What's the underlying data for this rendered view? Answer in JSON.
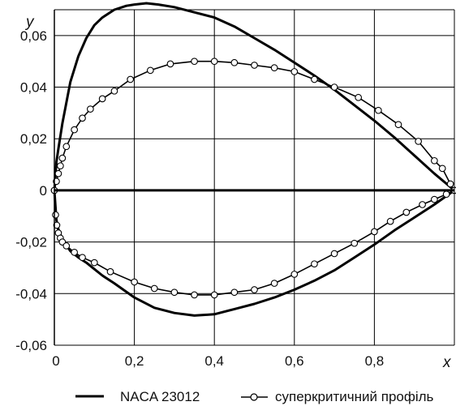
{
  "chart_data": {
    "type": "line",
    "title": "",
    "xlabel": "x",
    "ylabel": "y",
    "xlim": [
      0,
      1.0
    ],
    "ylim": [
      -0.06,
      0.07
    ],
    "x_ticks": [
      0,
      0.2,
      0.4,
      0.6,
      0.8
    ],
    "x_tick_labels": [
      "0",
      "0,2",
      "0,4",
      "0,6",
      "0,8"
    ],
    "y_ticks": [
      -0.06,
      -0.04,
      -0.02,
      0,
      0.02,
      0.04,
      0.06
    ],
    "y_tick_labels": [
      "-0,06",
      "-0,04",
      "-0,02",
      "0",
      "0,02",
      "0,04",
      "0,06"
    ],
    "grid": true,
    "legend_position": "bottom",
    "colors": {
      "line": "#000000",
      "marker_fill": "#ffffff"
    },
    "series": [
      {
        "name": "NACA 23012",
        "style": "line",
        "upper": {
          "x": [
            0,
            0.005,
            0.01,
            0.02,
            0.04,
            0.06,
            0.08,
            0.1,
            0.12,
            0.15,
            0.18,
            0.2,
            0.23,
            0.26,
            0.3,
            0.35,
            0.4,
            0.45,
            0.5,
            0.55,
            0.6,
            0.65,
            0.7,
            0.75,
            0.8,
            0.85,
            0.9,
            0.95,
            1.0
          ],
          "y": [
            0,
            0.011,
            0.016,
            0.026,
            0.042,
            0.052,
            0.059,
            0.064,
            0.067,
            0.07,
            0.0715,
            0.072,
            0.0725,
            0.072,
            0.071,
            0.069,
            0.067,
            0.0635,
            0.059,
            0.0545,
            0.0495,
            0.0445,
            0.039,
            0.033,
            0.027,
            0.0205,
            0.0135,
            0.0065,
            0
          ]
        },
        "lower": {
          "x": [
            0,
            0.005,
            0.01,
            0.02,
            0.04,
            0.06,
            0.08,
            0.1,
            0.12,
            0.15,
            0.2,
            0.25,
            0.3,
            0.35,
            0.4,
            0.45,
            0.5,
            0.55,
            0.6,
            0.65,
            0.7,
            0.75,
            0.8,
            0.85,
            0.9,
            0.95,
            1.0
          ],
          "y": [
            0,
            -0.0115,
            -0.015,
            -0.019,
            -0.0235,
            -0.026,
            -0.028,
            -0.0305,
            -0.033,
            -0.036,
            -0.0415,
            -0.0455,
            -0.0475,
            -0.0485,
            -0.048,
            -0.046,
            -0.044,
            -0.0415,
            -0.0385,
            -0.035,
            -0.031,
            -0.026,
            -0.021,
            -0.0155,
            -0.0105,
            -0.0055,
            0
          ]
        }
      },
      {
        "name": "суперкритичний профіль",
        "style": "line-with-open-circles",
        "upper": {
          "x": [
            0,
            0.005,
            0.01,
            0.015,
            0.02,
            0.03,
            0.05,
            0.07,
            0.09,
            0.12,
            0.15,
            0.19,
            0.24,
            0.29,
            0.35,
            0.4,
            0.45,
            0.5,
            0.55,
            0.6,
            0.65,
            0.7,
            0.76,
            0.81,
            0.86,
            0.91,
            0.95,
            0.97,
            0.99,
            1.0
          ],
          "y": [
            0,
            0.0035,
            0.0065,
            0.0095,
            0.0125,
            0.017,
            0.0235,
            0.028,
            0.0315,
            0.0355,
            0.0385,
            0.043,
            0.0465,
            0.049,
            0.05,
            0.05,
            0.0495,
            0.0485,
            0.0475,
            0.046,
            0.043,
            0.04,
            0.036,
            0.031,
            0.0255,
            0.019,
            0.0115,
            0.0085,
            0.0025,
            0
          ]
        },
        "lower": {
          "x": [
            0,
            0.003,
            0.006,
            0.01,
            0.015,
            0.02,
            0.03,
            0.05,
            0.07,
            0.1,
            0.14,
            0.2,
            0.25,
            0.3,
            0.35,
            0.4,
            0.45,
            0.5,
            0.55,
            0.6,
            0.65,
            0.7,
            0.75,
            0.8,
            0.84,
            0.88,
            0.92,
            0.95,
            0.98,
            1.0
          ],
          "y": [
            0,
            -0.0095,
            -0.0135,
            -0.0165,
            -0.0185,
            -0.02,
            -0.0215,
            -0.024,
            -0.026,
            -0.028,
            -0.0315,
            -0.0355,
            -0.038,
            -0.0395,
            -0.0405,
            -0.0405,
            -0.0395,
            -0.0385,
            -0.036,
            -0.0325,
            -0.0285,
            -0.0245,
            -0.0205,
            -0.016,
            -0.012,
            -0.0085,
            -0.0055,
            -0.0035,
            -0.0015,
            0
          ]
        }
      }
    ]
  }
}
